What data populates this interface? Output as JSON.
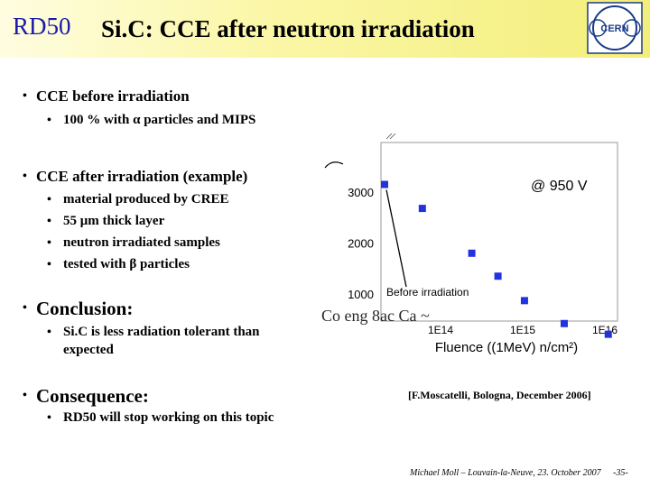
{
  "header": {
    "label": "RD50",
    "title": "Si.C: CCE after neutron irradiation",
    "logo_text": "CERN"
  },
  "bullets": {
    "before": "CCE before irradiation",
    "before_sub": "100 % with α particles and MIPS",
    "after": "CCE after irradiation (example)",
    "after_subs": [
      "material produced by CREE",
      "55 μm thick layer",
      "neutron irradiated samples",
      "tested with β particles"
    ],
    "conclusion": "Conclusion:",
    "conclusion_sub_line1": "Si.C is less radiation tolerant than",
    "conclusion_sub_line2": "expected",
    "consequence": "Consequence:",
    "consequence_sub": "RD50 will stop working on this topic"
  },
  "chart_data": {
    "type": "scatter",
    "annotation": "@ 950 V",
    "before_label": "Before irradiation",
    "y_scale": "linear",
    "x_scale": "log",
    "y_ticks": [
      1000,
      2000,
      3000
    ],
    "x_ticks": [
      100000000000000.0,
      1000000000000000.0,
      1e+16
    ],
    "x_tick_labels": [
      "1E14",
      "1E15",
      "1E16"
    ],
    "y_tick_labels": [
      "1000",
      "2000",
      "3000"
    ],
    "xlabel": "Fluence ((1MeV) n/cm²)",
    "ylabel": "",
    "marker_color": "#2233dd",
    "points": [
      {
        "x": 0,
        "y": 3150
      },
      {
        "x": 60000000000000.0,
        "y": 2680
      },
      {
        "x": 240000000000000.0,
        "y": 1800
      },
      {
        "x": 500000000000000.0,
        "y": 1350
      },
      {
        "x": 1050000000000000.0,
        "y": 870
      },
      {
        "x": 3200000000000000.0,
        "y": 420
      },
      {
        "x": 1.1e+16,
        "y": 210
      }
    ]
  },
  "reference": "[F.Moscatelli, Bologna, December 2006]",
  "footer": {
    "author": "Michael Moll – Louvain-la-Neuve, 23. October 2007",
    "page": "-35-"
  },
  "colors": {
    "title_blue": "#1a1aa8",
    "banner_yellow": "#f3ee7a",
    "cern_blue": "#1a3a8a"
  }
}
